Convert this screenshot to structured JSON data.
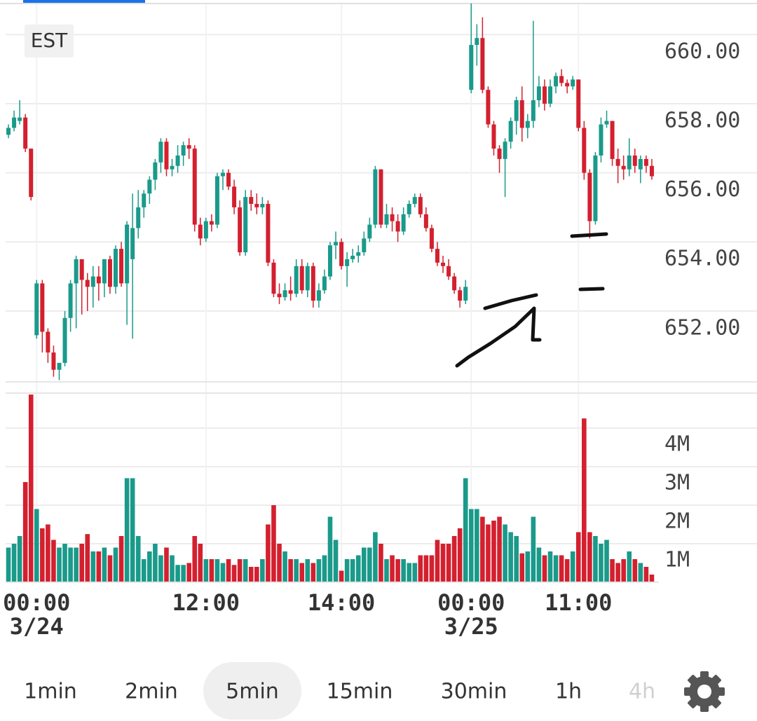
{
  "chart_data": {
    "type": "candlestick",
    "timezone": "EST",
    "up_color": "#1a9a8a",
    "down_color": "#d3202f",
    "grid": true,
    "xlim": [
      -0.5,
      115.25
    ],
    "xticks": [
      {
        "value": 5,
        "label": "00:00",
        "date": "3/24"
      },
      {
        "value": 35,
        "label": "12:00"
      },
      {
        "value": 59,
        "label": "14:00"
      },
      {
        "value": 82,
        "label": "00:00",
        "date": "3/25"
      },
      {
        "value": 101,
        "label": "11:00"
      }
    ],
    "ylim": [
      649.95,
      661.0
    ],
    "yticks": [
      {
        "value": 652,
        "label": "652.00"
      },
      {
        "value": 654,
        "label": "654.00"
      },
      {
        "value": 656,
        "label": "656.00"
      },
      {
        "value": 658,
        "label": "658.00"
      },
      {
        "value": 660,
        "label": "660.00"
      }
    ],
    "vlim": [
      0,
      4.89
    ],
    "vticks": [
      {
        "value": 1,
        "label": "1M"
      },
      {
        "value": 2,
        "label": "2M"
      },
      {
        "value": 3,
        "label": "3M"
      },
      {
        "value": 4,
        "label": "4M"
      }
    ],
    "open": [
      657.1,
      657.3,
      657.5,
      657.6,
      656.7,
      651.3,
      652.8,
      651.4,
      650.8,
      650.3,
      650.5,
      651.8,
      652.8,
      653.5,
      652.9,
      652.7,
      653.0,
      652.8,
      653.5,
      652.7,
      653.8,
      652.8,
      653.5,
      654.4,
      655.0,
      655.4,
      655.8,
      656.3,
      656.9,
      656.1,
      656.2,
      656.5,
      656.8,
      656.7,
      654.5,
      654.1,
      654.6,
      654.5,
      655.9,
      656.0,
      655.6,
      655.0,
      653.7,
      655.3,
      655.1,
      655.0,
      655.1,
      653.4,
      652.5,
      652.4,
      652.6,
      652.5,
      653.3,
      652.6,
      653.3,
      652.3,
      652.6,
      653.0,
      653.9,
      654.0,
      653.3,
      653.5,
      653.6,
      653.7,
      654.1,
      654.5,
      656.1,
      654.5,
      654.8,
      654.6,
      654.3,
      654.8,
      655.1,
      655.3,
      654.8,
      654.4,
      653.8,
      653.4,
      653.3,
      653.0,
      652.6,
      652.3,
      658.4,
      659.7,
      659.9,
      658.4,
      657.4,
      656.7,
      656.4,
      656.9,
      657.5,
      658.1,
      657.3,
      657.5,
      658.1,
      658.5,
      658.0,
      658.5,
      658.8,
      658.6,
      658.5,
      658.7,
      657.3,
      656.0,
      654.6,
      656.5,
      657.4,
      657.5,
      656.4,
      656.2,
      656.1,
      656.5,
      656.1,
      656.4,
      656.2
    ],
    "high": [
      657.4,
      657.8,
      658.1,
      657.7,
      656.7,
      652.9,
      652.9,
      651.5,
      651.0,
      650.5,
      652.0,
      652.9,
      653.6,
      653.5,
      653.1,
      653.3,
      653.3,
      653.5,
      653.6,
      653.9,
      654.0,
      654.6,
      655.4,
      655.5,
      655.5,
      655.9,
      656.4,
      657.0,
      657.0,
      656.4,
      656.8,
      656.9,
      657.0,
      656.8,
      654.7,
      654.7,
      654.8,
      656.0,
      656.1,
      656.1,
      655.8,
      655.2,
      655.5,
      655.5,
      655.4,
      655.3,
      655.2,
      653.5,
      652.8,
      652.8,
      653.0,
      653.5,
      653.5,
      653.4,
      653.4,
      652.8,
      653.2,
      654.0,
      654.3,
      654.1,
      653.7,
      653.8,
      653.9,
      654.3,
      654.7,
      656.2,
      656.1,
      655.1,
      655.0,
      654.8,
      655.0,
      655.2,
      655.4,
      655.4,
      655.0,
      654.5,
      654.0,
      653.6,
      653.5,
      653.1,
      652.7,
      652.9,
      660.9,
      660.3,
      660.5,
      658.5,
      657.5,
      656.8,
      657.0,
      657.6,
      658.2,
      658.5,
      657.7,
      660.4,
      658.8,
      658.7,
      658.7,
      658.9,
      659.0,
      658.7,
      658.8,
      658.7,
      657.5,
      656.1,
      656.6,
      657.6,
      657.8,
      657.5,
      656.7,
      656.5,
      657.0,
      656.7,
      656.5,
      656.5,
      656.4
    ],
    "low": [
      657.0,
      657.2,
      657.4,
      656.6,
      655.2,
      651.2,
      650.8,
      650.5,
      650.1,
      650.0,
      650.4,
      651.4,
      651.5,
      651.9,
      652.0,
      652.1,
      652.3,
      652.4,
      652.5,
      652.5,
      652.7,
      651.6,
      651.2,
      654.1,
      654.7,
      655.1,
      655.5,
      656.0,
      655.9,
      655.9,
      656.0,
      656.2,
      656.4,
      654.3,
      653.9,
      654.0,
      654.3,
      654.4,
      655.5,
      655.5,
      654.8,
      653.6,
      653.6,
      654.9,
      654.8,
      654.8,
      653.3,
      652.4,
      652.2,
      652.3,
      652.3,
      652.4,
      652.5,
      652.4,
      652.1,
      652.1,
      652.5,
      652.9,
      653.5,
      653.2,
      652.7,
      653.4,
      653.4,
      653.6,
      654.0,
      654.4,
      654.4,
      654.4,
      654.3,
      654.0,
      654.2,
      654.7,
      655.0,
      654.7,
      654.3,
      653.7,
      653.3,
      653.1,
      652.9,
      652.5,
      652.1,
      652.2,
      658.3,
      659.1,
      658.3,
      657.3,
      656.5,
      656.0,
      655.3,
      656.7,
      657.1,
      656.9,
      657.0,
      657.3,
      657.9,
      657.8,
      657.9,
      658.3,
      658.5,
      658.3,
      658.4,
      657.2,
      655.8,
      654.1,
      654.5,
      656.3,
      657.3,
      656.2,
      655.7,
      655.8,
      655.9,
      656.0,
      655.7,
      656.0,
      655.8
    ],
    "close": [
      657.3,
      657.6,
      657.6,
      656.7,
      655.3,
      652.8,
      651.4,
      650.8,
      650.3,
      650.5,
      651.8,
      652.8,
      653.5,
      652.9,
      652.7,
      653.0,
      652.8,
      653.5,
      652.7,
      653.8,
      652.8,
      654.5,
      654.4,
      655.0,
      655.4,
      655.8,
      656.3,
      656.9,
      656.1,
      656.2,
      656.5,
      656.8,
      656.7,
      654.5,
      654.1,
      654.6,
      654.5,
      655.9,
      656.0,
      655.6,
      655.0,
      653.7,
      655.3,
      655.1,
      655.0,
      655.1,
      653.4,
      652.5,
      652.4,
      652.6,
      652.5,
      653.3,
      652.6,
      653.3,
      652.3,
      652.6,
      653.0,
      653.9,
      654.0,
      653.3,
      653.5,
      653.6,
      653.7,
      654.1,
      654.5,
      656.1,
      654.5,
      654.8,
      654.6,
      654.3,
      654.8,
      655.1,
      655.3,
      654.8,
      654.4,
      653.8,
      653.4,
      653.3,
      653.0,
      652.6,
      652.3,
      652.7,
      659.7,
      659.9,
      658.4,
      657.4,
      656.7,
      656.4,
      656.9,
      657.5,
      658.1,
      657.3,
      657.5,
      658.1,
      658.5,
      658.0,
      658.5,
      658.8,
      658.6,
      658.5,
      658.7,
      657.3,
      656.0,
      654.6,
      656.5,
      657.4,
      657.5,
      656.4,
      656.2,
      656.1,
      656.5,
      656.2,
      656.4,
      656.2,
      655.9
    ],
    "volume": [
      0.9,
      1.0,
      1.2,
      2.6,
      4.87,
      1.9,
      1.4,
      1.5,
      1.1,
      0.9,
      1.0,
      0.9,
      0.9,
      1.0,
      1.25,
      0.8,
      0.8,
      0.9,
      0.7,
      0.9,
      1.2,
      2.7,
      2.7,
      1.2,
      0.6,
      0.8,
      1.0,
      0.7,
      0.9,
      0.7,
      0.45,
      0.45,
      0.5,
      1.2,
      1.0,
      0.6,
      0.6,
      0.6,
      0.5,
      0.6,
      0.45,
      0.6,
      0.6,
      0.4,
      0.4,
      0.6,
      1.5,
      2.0,
      1.0,
      0.8,
      0.6,
      0.6,
      0.5,
      0.6,
      0.5,
      0.6,
      0.7,
      1.7,
      1.1,
      0.3,
      0.6,
      0.6,
      0.7,
      0.9,
      0.9,
      1.3,
      1.0,
      0.6,
      0.7,
      0.6,
      0.6,
      0.5,
      0.5,
      0.7,
      0.7,
      0.7,
      1.1,
      1.0,
      1.0,
      1.2,
      1.4,
      2.7,
      1.9,
      1.9,
      1.7,
      1.5,
      1.6,
      1.7,
      1.5,
      1.3,
      1.2,
      0.75,
      0.8,
      1.7,
      0.9,
      0.7,
      0.8,
      0.7,
      0.7,
      0.6,
      0.8,
      1.3,
      4.25,
      1.3,
      1.2,
      1.0,
      1.1,
      0.6,
      0.5,
      0.6,
      0.8,
      0.6,
      0.5,
      0.4,
      0.2
    ]
  },
  "toolbar": {
    "timeframes": [
      "1min",
      "2min",
      "5min",
      "15min",
      "30min",
      "1h",
      "4h"
    ],
    "active_index": 2,
    "disabled_index": 6
  }
}
